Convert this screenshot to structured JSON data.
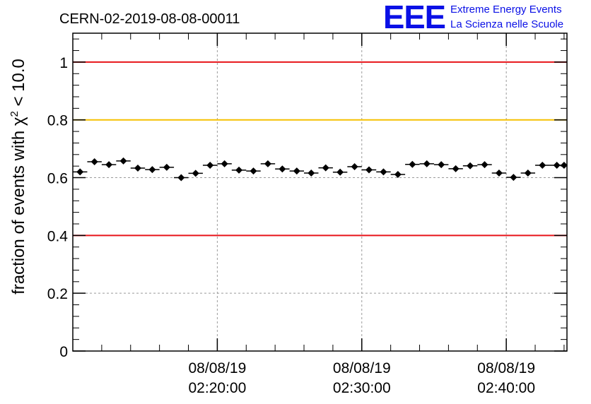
{
  "title": "CERN-02-2019-08-08-00011",
  "logo": {
    "mark": "EEE",
    "line1": "Extreme Energy Events",
    "line2": "La Scienza nelle Scuole",
    "color": "#0a10e6"
  },
  "chart_data": {
    "type": "scatter",
    "title": "CERN-02-2019-08-08-00011",
    "xlabel": "",
    "ylabel": "fraction of events with χ² < 10.0",
    "ylabel_parts": {
      "prefix": "fraction of events with ",
      "symbol": "χ",
      "sup": "2",
      "suffix": " < 10.0"
    },
    "ylim": [
      0,
      1.1
    ],
    "xlim_minutes": [
      10.0,
      44.2
    ],
    "x_unit": "minutes after 08/08/19 02:00:00",
    "yticks": [
      0,
      0.2,
      0.4,
      0.6,
      0.8,
      1
    ],
    "ytick_labels": [
      "0",
      "0.2",
      "0.4",
      "0.6",
      "0.8",
      "1"
    ],
    "xticks": [
      {
        "minute": 20,
        "date": "08/08/19",
        "time": "02:20:00"
      },
      {
        "minute": 30,
        "date": "08/08/19",
        "time": "02:30:00"
      },
      {
        "minute": 40,
        "date": "08/08/19",
        "time": "02:40:00"
      }
    ],
    "grid": true,
    "reference_lines": [
      {
        "y": 1.0,
        "color": "#e8141a"
      },
      {
        "y": 0.8,
        "color": "#f6c000"
      },
      {
        "y": 0.4,
        "color": "#e8141a"
      }
    ],
    "bin_width_minutes": 1.0,
    "series": [
      {
        "x": [
          10.5,
          11.5,
          12.5,
          13.5,
          14.5,
          15.5,
          16.5,
          17.5,
          18.5,
          19.5,
          20.5,
          21.5,
          22.5,
          23.5,
          24.5,
          25.5,
          26.5,
          27.5,
          28.5,
          29.5,
          30.5,
          31.5,
          32.5,
          33.5,
          34.5,
          35.5,
          36.5,
          37.5,
          38.5,
          39.5,
          40.5,
          41.5,
          42.5,
          43.5,
          44.0
        ],
        "y": [
          0.62,
          0.655,
          0.645,
          0.658,
          0.633,
          0.628,
          0.636,
          0.6,
          0.615,
          0.643,
          0.648,
          0.626,
          0.623,
          0.648,
          0.63,
          0.623,
          0.616,
          0.634,
          0.619,
          0.638,
          0.627,
          0.62,
          0.611,
          0.646,
          0.648,
          0.645,
          0.631,
          0.641,
          0.645,
          0.616,
          0.601,
          0.616,
          0.643,
          0.643,
          0.643
        ],
        "yerr": [
          0.008,
          0.008,
          0.008,
          0.008,
          0.008,
          0.008,
          0.008,
          0.008,
          0.008,
          0.008,
          0.008,
          0.008,
          0.008,
          0.008,
          0.008,
          0.008,
          0.008,
          0.008,
          0.008,
          0.008,
          0.008,
          0.008,
          0.008,
          0.008,
          0.008,
          0.008,
          0.008,
          0.008,
          0.008,
          0.008,
          0.008,
          0.008,
          0.008,
          0.008,
          0.008
        ]
      }
    ]
  }
}
